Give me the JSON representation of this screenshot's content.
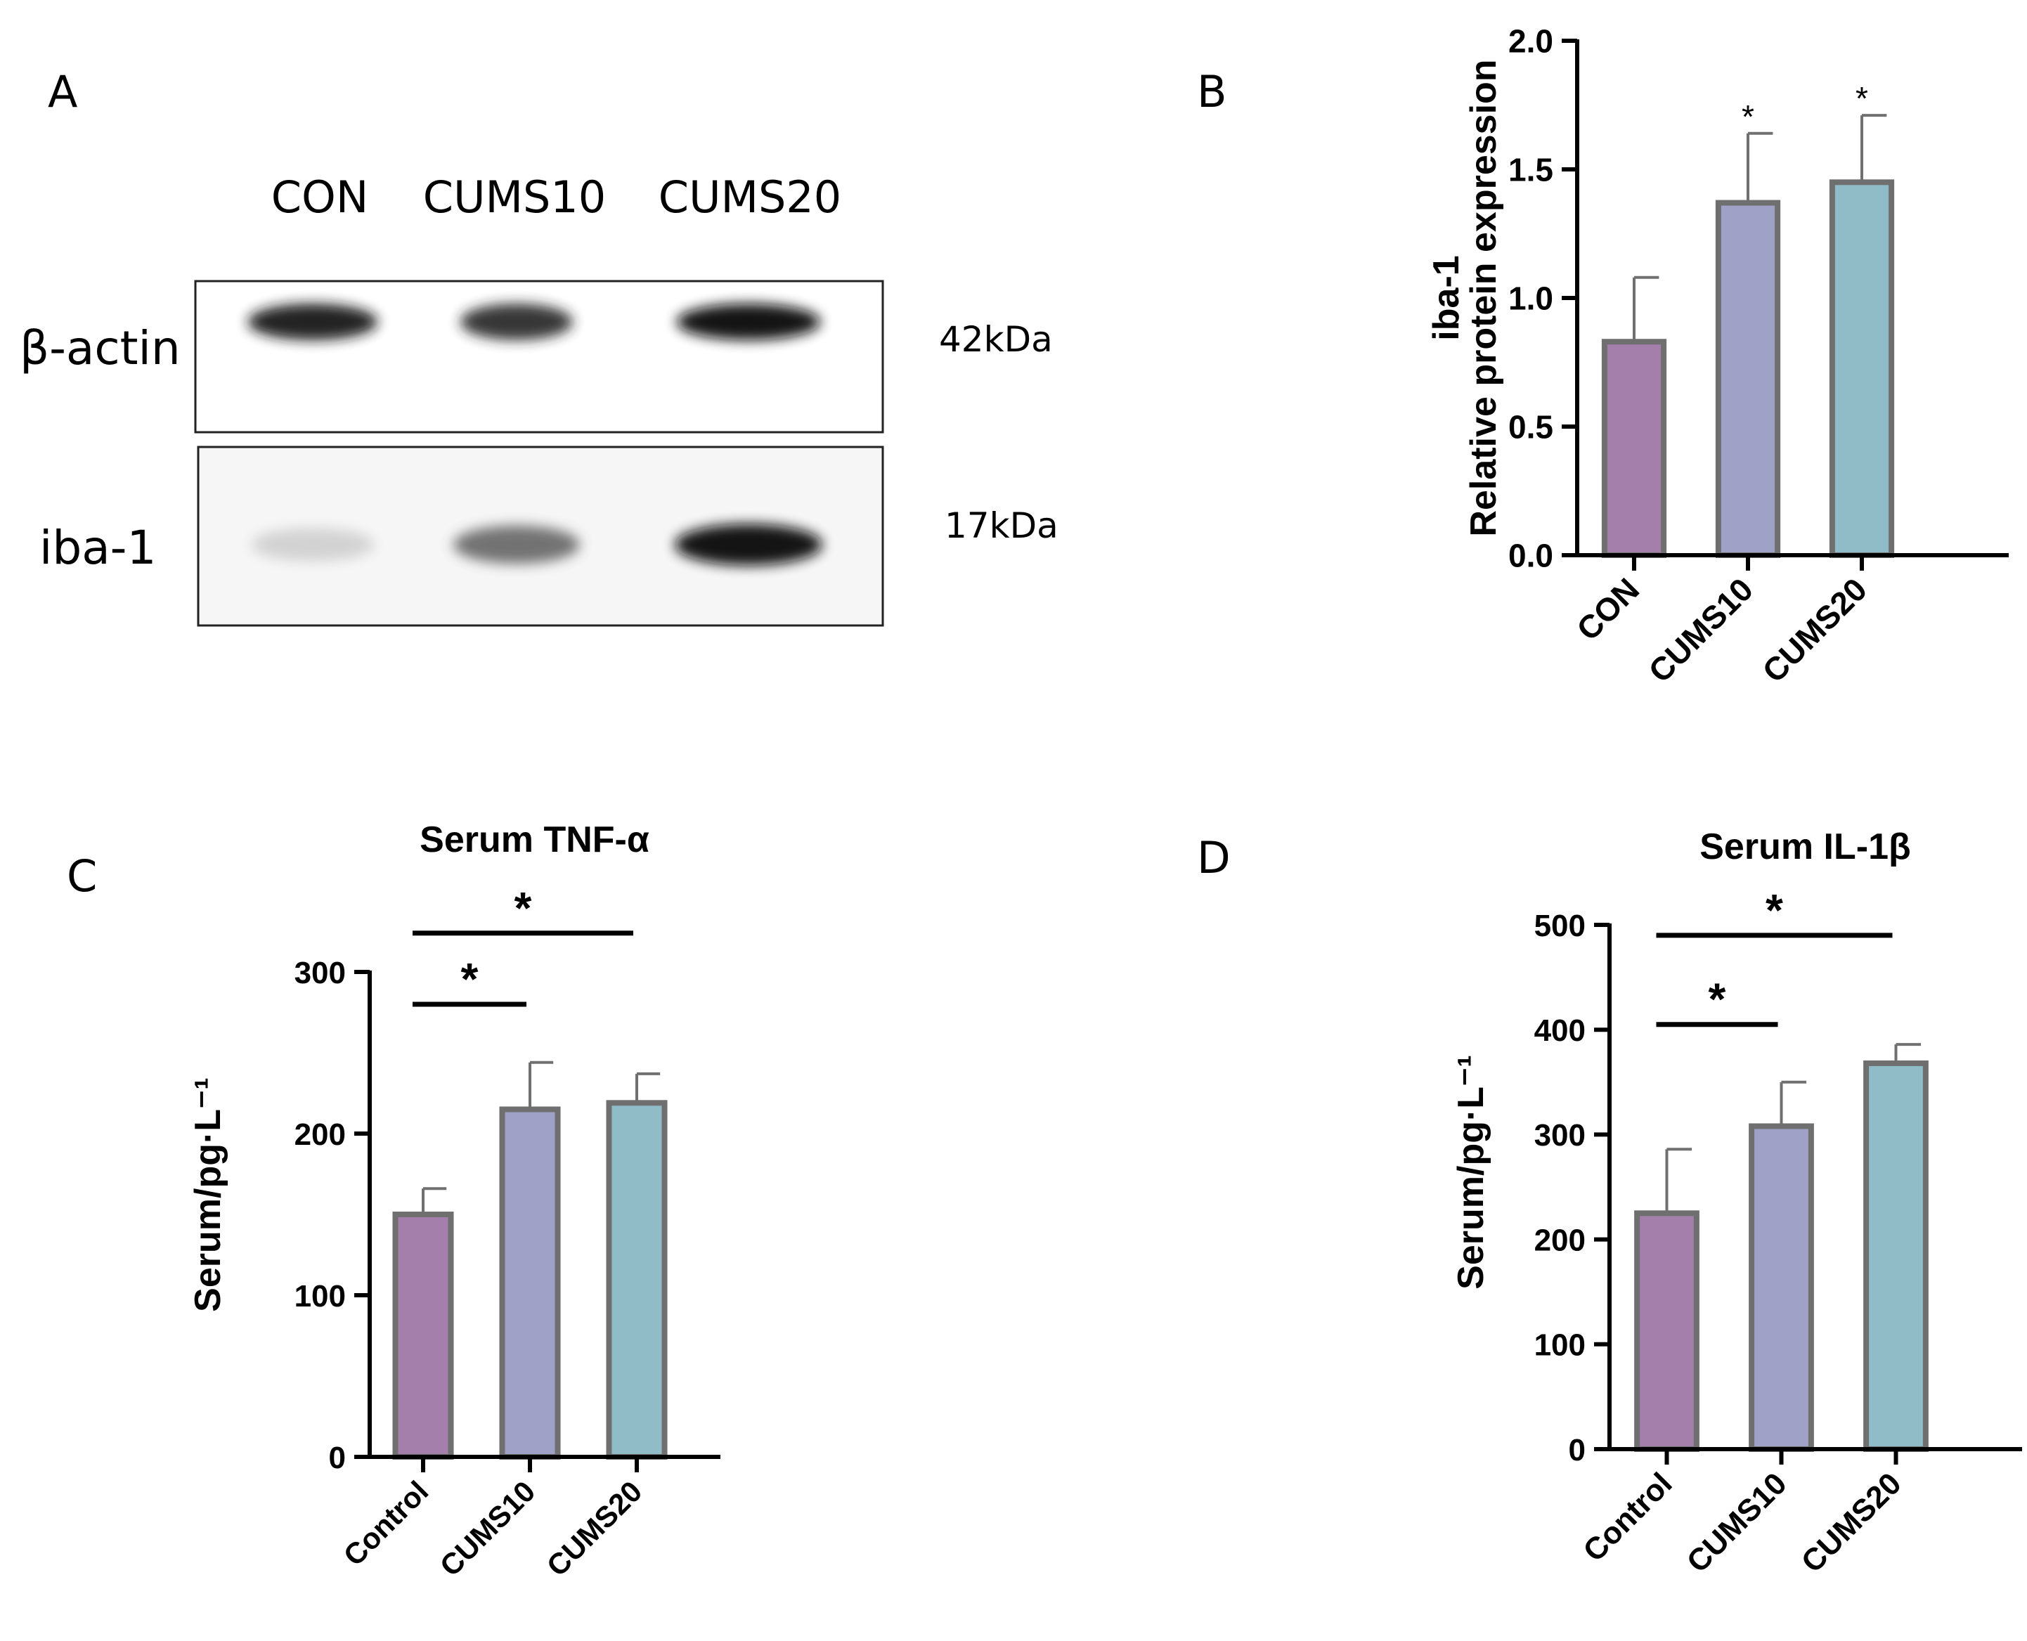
{
  "panel_letters": [
    "A",
    "B",
    "C",
    "D"
  ],
  "blot": {
    "lanes": [
      "CON",
      "CUMS10",
      "CUMS20"
    ],
    "rows": [
      {
        "label": "β-actin",
        "size": "42kDa",
        "band_intensity": [
          0.9,
          0.85,
          0.95
        ]
      },
      {
        "label": "iba-1",
        "size": "17kDa",
        "band_intensity": [
          0.2,
          0.65,
          0.95
        ]
      }
    ]
  },
  "colors": {
    "bar1": "#a47fab",
    "bar2": "#9fa2c6",
    "bar3": "#8fbcc6",
    "bar_edge": "#6f6f6f",
    "axis": "#000000"
  },
  "chart_data": [
    {
      "type": "bar",
      "panel": "B",
      "title": "",
      "categories": [
        "CON",
        "CUMS10",
        "CUMS20"
      ],
      "values": [
        0.83,
        1.37,
        1.45
      ],
      "errors": [
        0.25,
        0.27,
        0.26
      ],
      "ylabel": [
        "iba-1",
        "Relative protein expression"
      ],
      "ylim": [
        0,
        2.0
      ],
      "yticks": [
        0.0,
        0.5,
        1.0,
        1.5,
        2.0
      ],
      "ytick_labels": [
        "0.0",
        "0.5",
        "1.0",
        "1.5",
        "2.0"
      ],
      "marks": [
        "",
        "*",
        "*"
      ],
      "brackets": []
    },
    {
      "type": "bar",
      "panel": "C",
      "title": "Serum TNF-α",
      "categories": [
        "Control",
        "CUMS10",
        "CUMS20"
      ],
      "values": [
        150,
        215,
        219
      ],
      "errors": [
        16,
        29,
        18
      ],
      "ylabel": [
        "Serum/pg·L⁻¹"
      ],
      "ylim": [
        0,
        300
      ],
      "yticks": [
        0,
        100,
        200,
        300
      ],
      "ytick_labels": [
        "0",
        "100",
        "200",
        "300"
      ],
      "marks": [
        "",
        "",
        ""
      ],
      "brackets": [
        {
          "from": 0,
          "to": 1,
          "value": 280,
          "label": "*"
        },
        {
          "from": 0,
          "to": 2,
          "value": 324,
          "label": "*"
        }
      ]
    },
    {
      "type": "bar",
      "panel": "D",
      "title": "Serum IL-1β",
      "categories": [
        "Control",
        "CUMS10",
        "CUMS20"
      ],
      "values": [
        225,
        308,
        368
      ],
      "errors": [
        61,
        42,
        18
      ],
      "ylabel": [
        "Serum/pg·L⁻¹"
      ],
      "ylim": [
        0,
        500
      ],
      "yticks": [
        0,
        100,
        200,
        300,
        400,
        500
      ],
      "ytick_labels": [
        "0",
        "100",
        "200",
        "300",
        "400",
        "500"
      ],
      "marks": [
        "",
        "",
        ""
      ],
      "brackets": [
        {
          "from": 0,
          "to": 1,
          "value": 405,
          "label": "*"
        },
        {
          "from": 0,
          "to": 2,
          "value": 490,
          "label": "*"
        }
      ]
    }
  ]
}
